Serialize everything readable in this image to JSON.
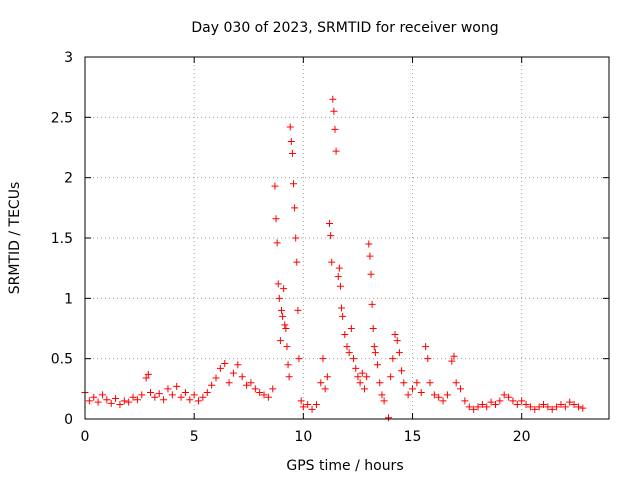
{
  "chart_data": {
    "type": "scatter",
    "title": "Day 030 of 2023, SRMTID for receiver wong",
    "xlabel": "GPS time / hours",
    "ylabel": "SRMTID / TECUs",
    "xlim": [
      0,
      24
    ],
    "ylim": [
      0,
      3
    ],
    "xticks": [
      0,
      5,
      10,
      15,
      20
    ],
    "yticks": [
      0,
      0.5,
      1,
      1.5,
      2,
      2.5,
      3
    ],
    "xtick_labels": [
      "0",
      "5",
      "10",
      "15",
      "20"
    ],
    "ytick_labels": [
      "0",
      "0.5",
      "1",
      "1.5",
      "2",
      "2.5",
      "3"
    ],
    "grid": true,
    "marker": "+",
    "color": "#ff0000",
    "series": [
      {
        "name": "SRMTID",
        "points": [
          [
            0.0,
            0.22
          ],
          [
            0.2,
            0.15
          ],
          [
            0.4,
            0.18
          ],
          [
            0.6,
            0.14
          ],
          [
            0.8,
            0.2
          ],
          [
            1.0,
            0.16
          ],
          [
            1.2,
            0.13
          ],
          [
            1.4,
            0.17
          ],
          [
            1.6,
            0.12
          ],
          [
            1.8,
            0.15
          ],
          [
            2.0,
            0.14
          ],
          [
            2.2,
            0.18
          ],
          [
            2.4,
            0.16
          ],
          [
            2.6,
            0.2
          ],
          [
            2.8,
            0.34
          ],
          [
            2.9,
            0.37
          ],
          [
            3.0,
            0.22
          ],
          [
            3.2,
            0.18
          ],
          [
            3.4,
            0.21
          ],
          [
            3.6,
            0.16
          ],
          [
            3.8,
            0.25
          ],
          [
            4.0,
            0.2
          ],
          [
            4.2,
            0.27
          ],
          [
            4.4,
            0.18
          ],
          [
            4.6,
            0.22
          ],
          [
            4.8,
            0.16
          ],
          [
            5.0,
            0.2
          ],
          [
            5.2,
            0.15
          ],
          [
            5.4,
            0.18
          ],
          [
            5.6,
            0.22
          ],
          [
            5.8,
            0.28
          ],
          [
            6.0,
            0.34
          ],
          [
            6.2,
            0.42
          ],
          [
            6.4,
            0.46
          ],
          [
            6.6,
            0.3
          ],
          [
            6.8,
            0.38
          ],
          [
            7.0,
            0.45
          ],
          [
            7.2,
            0.35
          ],
          [
            7.4,
            0.28
          ],
          [
            7.6,
            0.3
          ],
          [
            7.8,
            0.25
          ],
          [
            8.0,
            0.22
          ],
          [
            8.2,
            0.2
          ],
          [
            8.4,
            0.18
          ],
          [
            8.6,
            0.25
          ],
          [
            8.7,
            1.93
          ],
          [
            8.75,
            1.66
          ],
          [
            8.8,
            1.46
          ],
          [
            8.85,
            1.12
          ],
          [
            8.9,
            1.0
          ],
          [
            8.95,
            0.65
          ],
          [
            9.0,
            0.9
          ],
          [
            9.05,
            0.85
          ],
          [
            9.1,
            1.08
          ],
          [
            9.15,
            0.78
          ],
          [
            9.2,
            0.75
          ],
          [
            9.25,
            0.6
          ],
          [
            9.3,
            0.45
          ],
          [
            9.35,
            0.35
          ],
          [
            9.4,
            2.42
          ],
          [
            9.45,
            2.3
          ],
          [
            9.5,
            2.2
          ],
          [
            9.55,
            1.95
          ],
          [
            9.6,
            1.75
          ],
          [
            9.65,
            1.5
          ],
          [
            9.7,
            1.3
          ],
          [
            9.75,
            0.9
          ],
          [
            9.8,
            0.5
          ],
          [
            9.9,
            0.15
          ],
          [
            10.0,
            0.1
          ],
          [
            10.2,
            0.12
          ],
          [
            10.4,
            0.08
          ],
          [
            10.6,
            0.12
          ],
          [
            10.8,
            0.3
          ],
          [
            10.9,
            0.5
          ],
          [
            11.0,
            0.25
          ],
          [
            11.1,
            0.35
          ],
          [
            11.2,
            1.62
          ],
          [
            11.25,
            1.52
          ],
          [
            11.3,
            1.3
          ],
          [
            11.35,
            2.65
          ],
          [
            11.4,
            2.55
          ],
          [
            11.45,
            2.4
          ],
          [
            11.5,
            2.22
          ],
          [
            11.6,
            1.18
          ],
          [
            11.65,
            1.25
          ],
          [
            11.7,
            1.1
          ],
          [
            11.75,
            0.92
          ],
          [
            11.8,
            0.85
          ],
          [
            11.9,
            0.7
          ],
          [
            12.0,
            0.6
          ],
          [
            12.1,
            0.55
          ],
          [
            12.2,
            0.75
          ],
          [
            12.3,
            0.5
          ],
          [
            12.4,
            0.42
          ],
          [
            12.5,
            0.35
          ],
          [
            12.6,
            0.3
          ],
          [
            12.7,
            0.38
          ],
          [
            12.8,
            0.25
          ],
          [
            12.9,
            0.35
          ],
          [
            13.0,
            1.45
          ],
          [
            13.05,
            1.35
          ],
          [
            13.1,
            1.2
          ],
          [
            13.15,
            0.95
          ],
          [
            13.2,
            0.75
          ],
          [
            13.25,
            0.6
          ],
          [
            13.3,
            0.55
          ],
          [
            13.4,
            0.45
          ],
          [
            13.5,
            0.3
          ],
          [
            13.6,
            0.2
          ],
          [
            13.7,
            0.15
          ],
          [
            13.9,
            0.01
          ],
          [
            14.0,
            0.35
          ],
          [
            14.1,
            0.5
          ],
          [
            14.2,
            0.7
          ],
          [
            14.3,
            0.65
          ],
          [
            14.4,
            0.55
          ],
          [
            14.5,
            0.4
          ],
          [
            14.6,
            0.3
          ],
          [
            14.8,
            0.2
          ],
          [
            15.0,
            0.25
          ],
          [
            15.2,
            0.3
          ],
          [
            15.4,
            0.22
          ],
          [
            15.6,
            0.6
          ],
          [
            15.7,
            0.5
          ],
          [
            15.8,
            0.3
          ],
          [
            16.0,
            0.2
          ],
          [
            16.2,
            0.18
          ],
          [
            16.4,
            0.15
          ],
          [
            16.6,
            0.2
          ],
          [
            16.8,
            0.48
          ],
          [
            16.9,
            0.52
          ],
          [
            17.0,
            0.3
          ],
          [
            17.2,
            0.25
          ],
          [
            17.4,
            0.15
          ],
          [
            17.6,
            0.1
          ],
          [
            17.8,
            0.08
          ],
          [
            18.0,
            0.1
          ],
          [
            18.2,
            0.12
          ],
          [
            18.4,
            0.1
          ],
          [
            18.6,
            0.14
          ],
          [
            18.8,
            0.12
          ],
          [
            19.0,
            0.15
          ],
          [
            19.2,
            0.2
          ],
          [
            19.4,
            0.18
          ],
          [
            19.6,
            0.15
          ],
          [
            19.8,
            0.12
          ],
          [
            20.0,
            0.15
          ],
          [
            20.2,
            0.12
          ],
          [
            20.4,
            0.1
          ],
          [
            20.6,
            0.08
          ],
          [
            20.8,
            0.1
          ],
          [
            21.0,
            0.12
          ],
          [
            21.2,
            0.1
          ],
          [
            21.4,
            0.08
          ],
          [
            21.6,
            0.1
          ],
          [
            21.8,
            0.12
          ],
          [
            22.0,
            0.1
          ],
          [
            22.2,
            0.14
          ],
          [
            22.4,
            0.12
          ],
          [
            22.6,
            0.1
          ],
          [
            22.8,
            0.09
          ]
        ]
      }
    ]
  }
}
